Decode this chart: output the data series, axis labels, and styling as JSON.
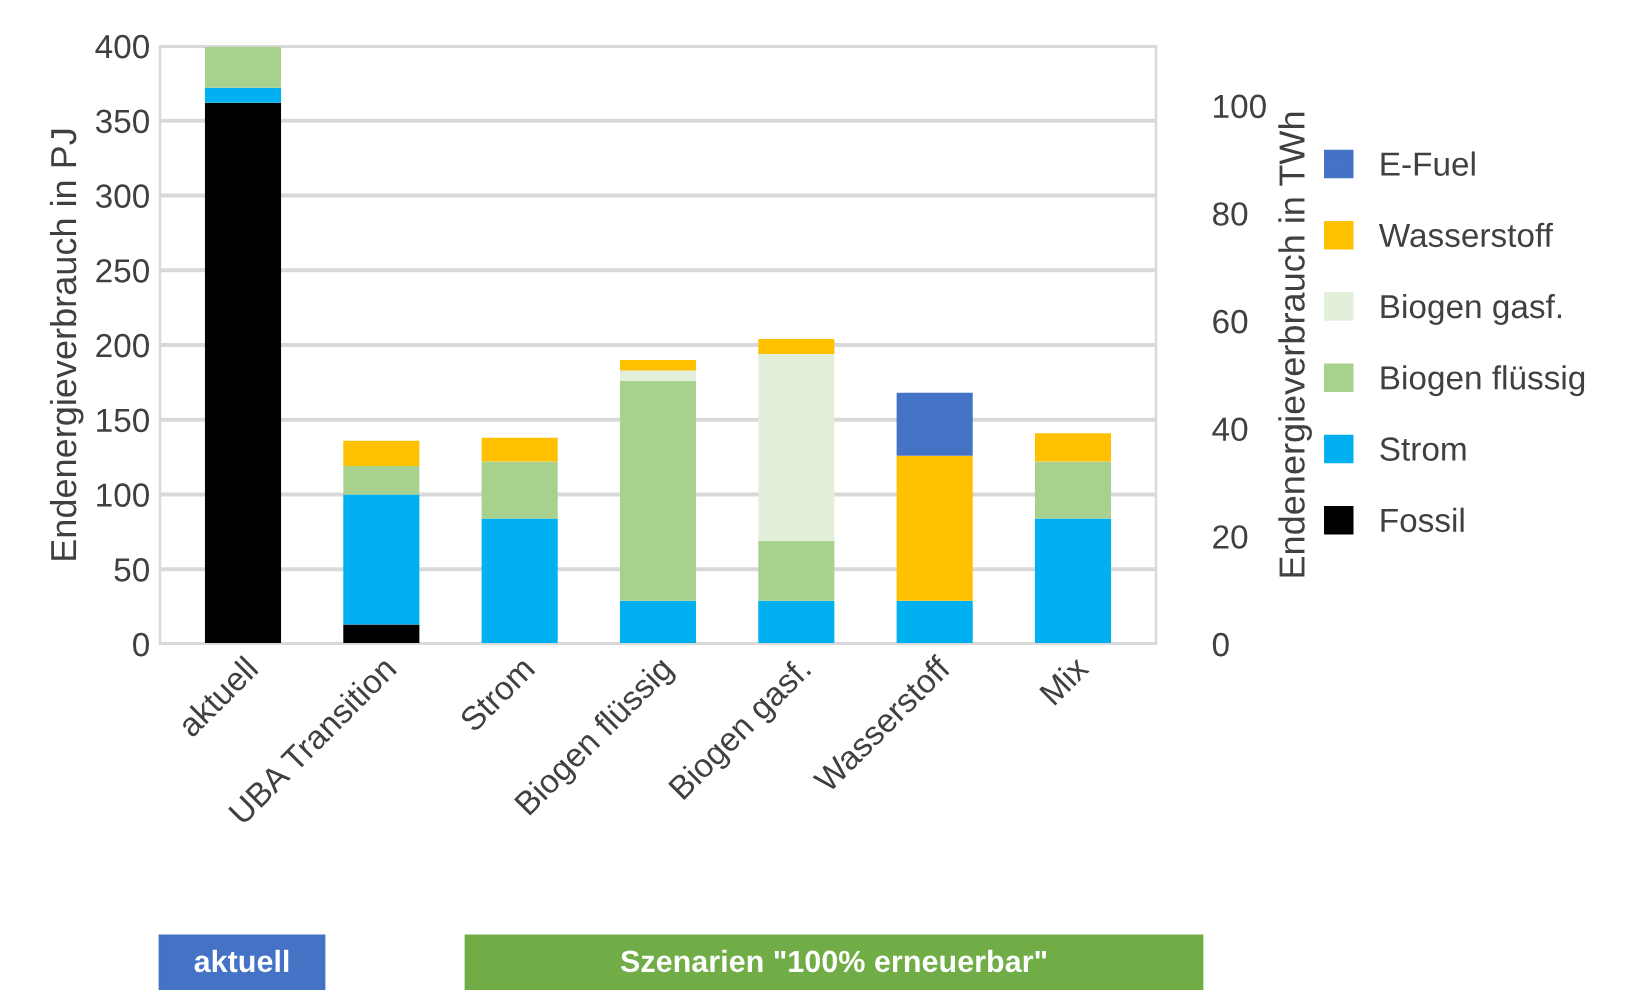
{
  "chart_data": {
    "type": "bar",
    "stacked": true,
    "categories": [
      "aktuell",
      "UBA Transition",
      "Strom",
      "Biogen flüssig",
      "Biogen gasf.",
      "Wasserstoff",
      "Mix"
    ],
    "series": [
      {
        "name": "Fossil",
        "color": "#000000",
        "values": [
          362,
          13,
          0,
          0,
          0,
          0,
          0
        ]
      },
      {
        "name": "Strom",
        "color": "#00b0f0",
        "values": [
          10,
          87,
          84,
          29,
          29,
          29,
          84
        ]
      },
      {
        "name": "Biogen flüssig",
        "color": "#a9d18e",
        "values": [
          28,
          19,
          38,
          147,
          40,
          0,
          38
        ]
      },
      {
        "name": "Biogen gasf.",
        "color": "#e2efda",
        "values": [
          0,
          0,
          0,
          7,
          125,
          0,
          0
        ]
      },
      {
        "name": "Wasserstoff",
        "color": "#ffc000",
        "values": [
          0,
          17,
          16,
          7,
          10,
          97,
          19
        ]
      },
      {
        "name": "E-Fuel",
        "color": "#4472c4",
        "values": [
          0,
          0,
          0,
          0,
          0,
          42,
          0
        ]
      }
    ],
    "ylabel": "Endenergieverbrauch in PJ",
    "y2label": "Endenergieverbrauch in TWh",
    "ylim": [
      0,
      400
    ],
    "yticks": [
      0,
      50,
      100,
      150,
      200,
      250,
      300,
      350,
      400
    ],
    "y2lim": [
      0,
      111.1
    ],
    "y2ticks": [
      0,
      20,
      40,
      60,
      80,
      100
    ],
    "grid": "y",
    "legend": "right",
    "annotations": [
      "aktuell",
      "Szenarien \"100% erneuerbar\""
    ]
  }
}
